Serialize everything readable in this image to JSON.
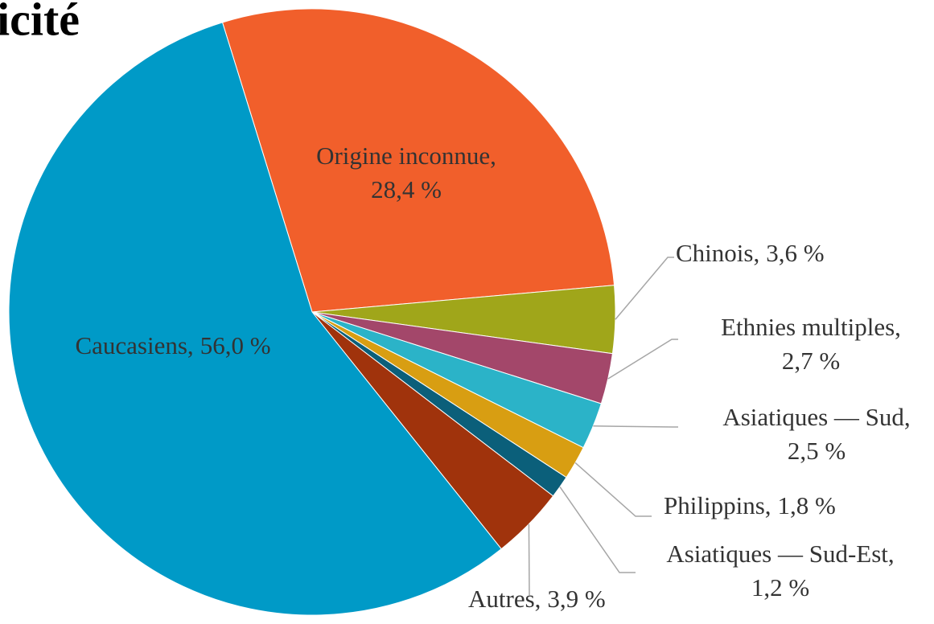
{
  "chart_data": {
    "type": "pie",
    "title": "icité",
    "categories": [
      "Origine inconnue,",
      "Chinois,",
      "Ethnies multiples,",
      "Asiatiques — Sud,",
      "Philippins,",
      "Asiatiques — Sud-Est,",
      "Autres,",
      "Caucasiens,"
    ],
    "values": [
      28.4,
      3.6,
      2.7,
      2.5,
      1.8,
      1.2,
      3.9,
      56.0
    ],
    "value_labels": [
      "28,4 %",
      "3,6 %",
      "2,7 %",
      "2,5 %",
      "1,8 %",
      "1,2 %",
      "3,9 %",
      "56,0 %"
    ],
    "colors": [
      "#f15f2b",
      "#a0a61a",
      "#a3476a",
      "#2bb3c8",
      "#d89e12",
      "#0b5f7a",
      "#a0330c",
      "#009ac7"
    ]
  }
}
